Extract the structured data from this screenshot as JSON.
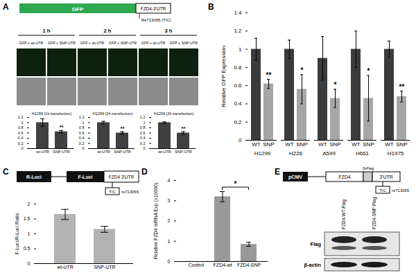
{
  "panels": {
    "A": {
      "label": "A",
      "construct": [
        "GFP",
        "FZD4-3'UTR"
      ],
      "snp": "Rs713065 (T/C)",
      "timepoints": [
        "1 h",
        "2 h",
        "3 h"
      ],
      "conditions": [
        "GFP + wt-UTR",
        "GFP + SNP-UTR"
      ]
    },
    "B": {
      "label": "B"
    },
    "C": {
      "label": "C",
      "construct": [
        "R-Luci",
        "F-Luci",
        "FZD4 3'UTR"
      ],
      "snp": "T/C",
      "snp_id": "rs713065"
    },
    "D": {
      "label": "D"
    },
    "E": {
      "label": "E",
      "construct": [
        "pCMV",
        "FZD4",
        "3xFlag",
        "3'UTR"
      ],
      "snp": "T/C",
      "snp_id": "rs713065",
      "lanes": [
        "FZD4-WT-Flag",
        "FZD4-SNP-Flag"
      ],
      "blots": [
        "Flag",
        "β-actin"
      ]
    }
  },
  "chart_data": [
    {
      "panel": "A",
      "type": "bar",
      "title": "H1299 (1h transfection)",
      "categories": [
        "wt-UTR",
        "SNP-UTR"
      ],
      "values": [
        1.0,
        0.65
      ],
      "errors": [
        0.15,
        0.05
      ],
      "significance": [
        null,
        "**"
      ],
      "color": "#404040",
      "ylim": [
        0,
        1.2
      ],
      "yticks": [
        0,
        0.2,
        0.4,
        0.6,
        0.8,
        1,
        1.2
      ]
    },
    {
      "panel": "A",
      "type": "bar",
      "title": "H1299 (2h transfection)",
      "categories": [
        "wt-UTR",
        "SNP-UTR"
      ],
      "values": [
        1.0,
        0.6
      ],
      "errors": [
        0.05,
        0.05
      ],
      "significance": [
        null,
        "**"
      ],
      "color": "#404040",
      "ylim": [
        0,
        1.2
      ],
      "yticks": [
        0,
        0.2,
        0.4,
        0.6,
        0.8,
        1,
        1.2
      ]
    },
    {
      "panel": "A",
      "type": "bar",
      "title": "H1299 (3h transfection)",
      "categories": [
        "wt-UTR",
        "SNP-UTR"
      ],
      "values": [
        1.0,
        0.6
      ],
      "errors": [
        0.03,
        0.05
      ],
      "significance": [
        null,
        "**"
      ],
      "color": "#404040",
      "ylim": [
        0,
        1.2
      ],
      "yticks": [
        0,
        0.2,
        0.4,
        0.6,
        0.8,
        1,
        1.2
      ]
    },
    {
      "panel": "B",
      "type": "bar",
      "ylabel": "Relative GFP Expression",
      "categories": [
        "H1299",
        "H226",
        "A549",
        "H661",
        "H1975"
      ],
      "series": [
        {
          "name": "WT",
          "color": "#3b3b3b",
          "values": [
            1.0,
            1.0,
            0.9,
            1.0,
            1.0
          ],
          "errors": [
            0.12,
            0.1,
            0.24,
            0.2,
            0.09
          ]
        },
        {
          "name": "SNP",
          "color": "#a6a6a6",
          "values": [
            0.62,
            0.56,
            0.46,
            0.46,
            0.48
          ],
          "errors": [
            0.05,
            0.16,
            0.1,
            0.25,
            0.06
          ],
          "significance": [
            "**",
            "*",
            "*",
            "*",
            "**"
          ]
        }
      ],
      "ylim": [
        0,
        1.4
      ],
      "yticks": [
        0,
        0.2,
        0.4,
        0.6,
        0.8,
        1,
        1.2,
        1.4
      ]
    },
    {
      "panel": "C",
      "type": "bar",
      "ylabel": "F-Luci/R-Luci Ratio",
      "categories": [
        "wt-UTR",
        "SNP-UTR"
      ],
      "values": [
        1.65,
        1.15
      ],
      "errors": [
        0.17,
        0.1
      ],
      "color": "#b3b3b3",
      "ylim": [
        0,
        2
      ],
      "yticks": [
        0,
        0.5,
        1,
        1.5,
        2
      ]
    },
    {
      "panel": "D",
      "type": "bar",
      "ylabel": "Relative FZD4 mRNA Exp (x10000)",
      "categories": [
        "Control",
        "FZD4-wt",
        "FZD4-SNP"
      ],
      "values": [
        0,
        3.2,
        0.85
      ],
      "errors": [
        null,
        0.25,
        0.1
      ],
      "color": "#999999",
      "ylim": [
        0,
        4
      ],
      "yticks": [
        0,
        1,
        2,
        3,
        4
      ],
      "comparison": {
        "between": [
          "FZD4-wt",
          "FZD4-SNP"
        ],
        "label": "*"
      }
    }
  ]
}
